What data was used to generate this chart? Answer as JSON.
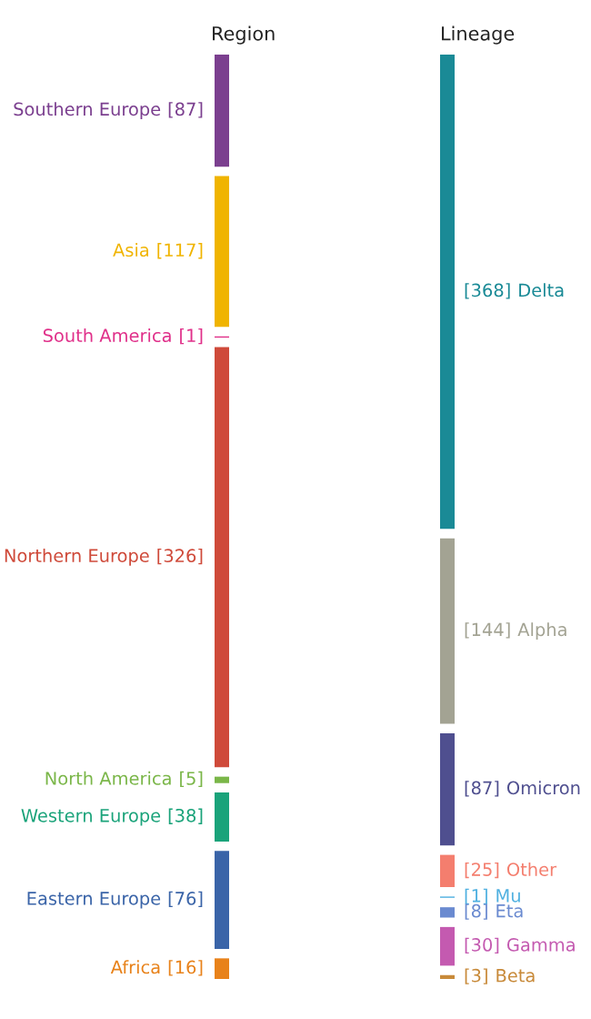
{
  "chart_data": [
    {
      "type": "other",
      "title": "Region",
      "categories": [
        "Southern Europe",
        "Asia",
        "South America",
        "Northern Europe",
        "North America",
        "Western Europe",
        "Eastern Europe",
        "Africa"
      ],
      "values": [
        87,
        117,
        1,
        326,
        5,
        38,
        76,
        16
      ],
      "value_labels": [
        "[87]",
        "[117]",
        "[1]",
        "[326]",
        "[5]",
        "[38]",
        "[76]",
        "[16]"
      ],
      "colors": [
        "#7b3f8f",
        "#f0b400",
        "#e0308a",
        "#cf4a3a",
        "#7ab648",
        "#1aa37a",
        "#3a64a8",
        "#e8821a"
      ]
    },
    {
      "type": "other",
      "title": "Lineage",
      "categories": [
        "Delta",
        "Alpha",
        "Omicron",
        "Other",
        "Mu",
        "Eta",
        "Gamma",
        "Beta"
      ],
      "values": [
        368,
        144,
        87,
        25,
        1,
        8,
        30,
        3
      ],
      "value_labels": [
        "[368]",
        "[144]",
        "[87]",
        "[25]",
        "[1]",
        "[8]",
        "[30]",
        "[3]"
      ],
      "colors": [
        "#1a8a96",
        "#a3a393",
        "#4f4f8f",
        "#f47e6e",
        "#4fb0e0",
        "#6a8ad0",
        "#c45ab0",
        "#c88a3a"
      ]
    }
  ]
}
